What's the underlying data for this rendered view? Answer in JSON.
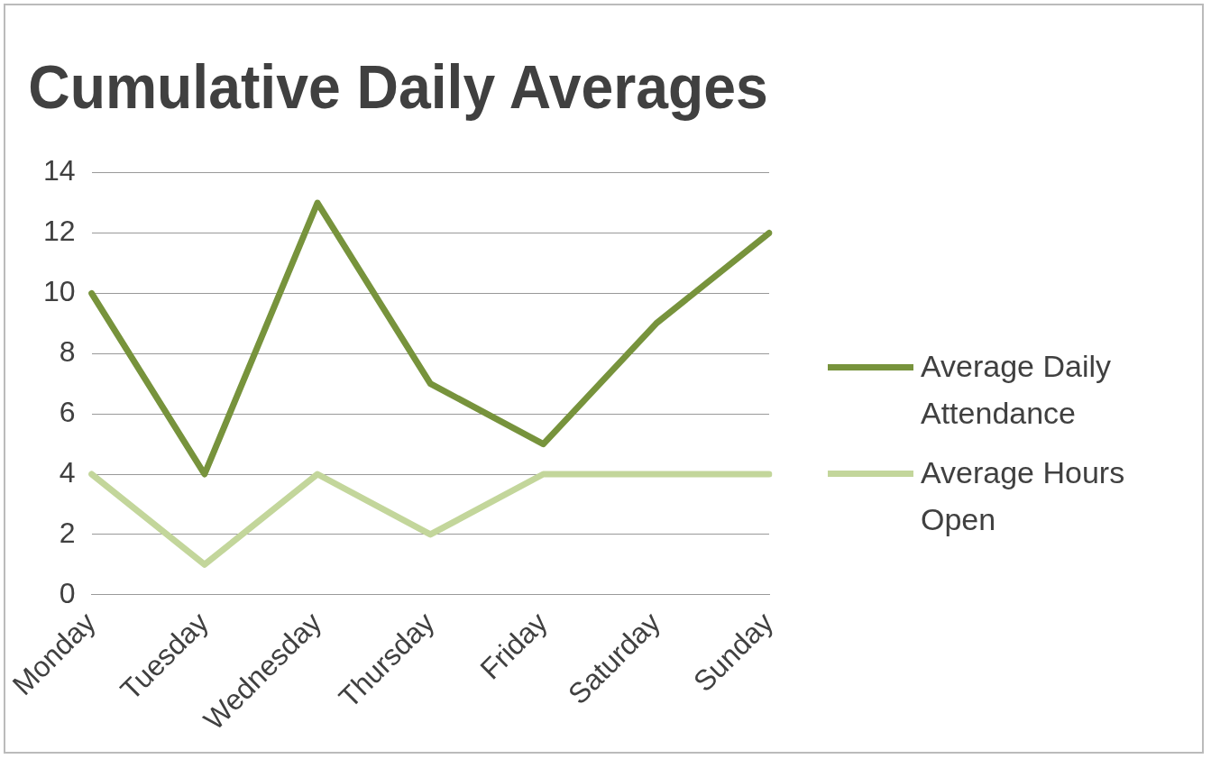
{
  "chart_data": {
    "type": "line",
    "title": "Cumulative Daily Averages",
    "categories": [
      "Monday",
      "Tuesday",
      "Wednesday",
      "Thursday",
      "Friday",
      "Saturday",
      "Sunday"
    ],
    "series": [
      {
        "name": "Average Daily Attendance",
        "color": "#77933c",
        "values": [
          10,
          4,
          13,
          7,
          5,
          9,
          12
        ]
      },
      {
        "name": "Average Hours Open",
        "color": "#c3d69b",
        "values": [
          4,
          1,
          4,
          2,
          4,
          4,
          4
        ]
      }
    ],
    "ylim": [
      0,
      14
    ],
    "yticks": [
      0,
      2,
      4,
      6,
      8,
      10,
      12,
      14
    ],
    "grid": "y",
    "legend": "right",
    "marker": "none"
  }
}
